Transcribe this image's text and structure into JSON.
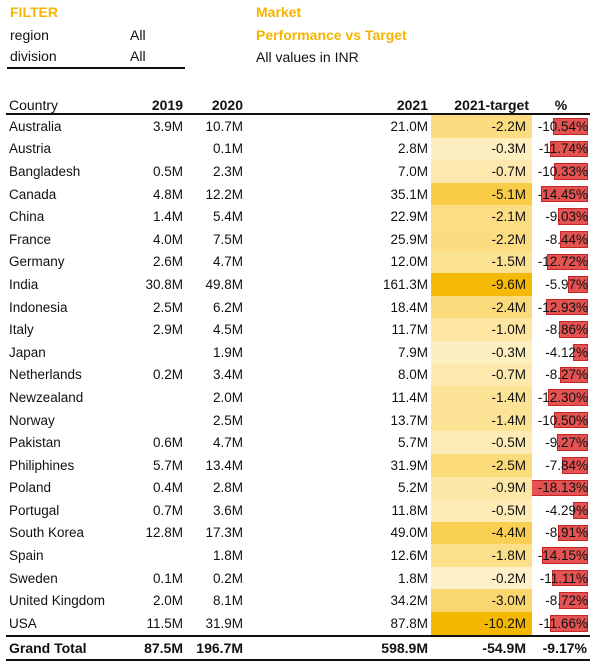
{
  "filter": {
    "title": "FILTER",
    "region_label": "region",
    "region_value": "All",
    "division_label": "division",
    "division_value": "All"
  },
  "report": {
    "title_line1": "Market",
    "title_line2": "Performance vs Target",
    "subtitle": "All values in INR"
  },
  "colors": {
    "accent": "#F4B400",
    "heat_low": "#FFF8E1",
    "heat_high": "#F5B800",
    "bar": "#E03535"
  },
  "columns": [
    "Country",
    "2019",
    "2020",
    "2021",
    "2021-target",
    "%"
  ],
  "rows": [
    {
      "country": "Australia",
      "y2019": "3.9M",
      "y2020": "10.7M",
      "y2021": "21.0M",
      "target": "-2.2M",
      "t": -2.2,
      "pct": "-10.54%",
      "p": 10.54
    },
    {
      "country": "Austria",
      "y2019": "",
      "y2020": "0.1M",
      "y2021": "2.8M",
      "target": "-0.3M",
      "t": -0.3,
      "pct": "-11.74%",
      "p": 11.74
    },
    {
      "country": "Bangladesh",
      "y2019": "0.5M",
      "y2020": "2.3M",
      "y2021": "7.0M",
      "target": "-0.7M",
      "t": -0.7,
      "pct": "-10.33%",
      "p": 10.33
    },
    {
      "country": "Canada",
      "y2019": "4.8M",
      "y2020": "12.2M",
      "y2021": "35.1M",
      "target": "-5.1M",
      "t": -5.1,
      "pct": "-14.45%",
      "p": 14.45
    },
    {
      "country": "China",
      "y2019": "1.4M",
      "y2020": "5.4M",
      "y2021": "22.9M",
      "target": "-2.1M",
      "t": -2.1,
      "pct": "-9.03%",
      "p": 9.03
    },
    {
      "country": "France",
      "y2019": "4.0M",
      "y2020": "7.5M",
      "y2021": "25.9M",
      "target": "-2.2M",
      "t": -2.2,
      "pct": "-8.44%",
      "p": 8.44
    },
    {
      "country": "Germany",
      "y2019": "2.6M",
      "y2020": "4.7M",
      "y2021": "12.0M",
      "target": "-1.5M",
      "t": -1.5,
      "pct": "-12.72%",
      "p": 12.72
    },
    {
      "country": "India",
      "y2019": "30.8M",
      "y2020": "49.8M",
      "y2021": "161.3M",
      "target": "-9.6M",
      "t": -9.6,
      "pct": "-5.97%",
      "p": 5.97
    },
    {
      "country": "Indonesia",
      "y2019": "2.5M",
      "y2020": "6.2M",
      "y2021": "18.4M",
      "target": "-2.4M",
      "t": -2.4,
      "pct": "-12.93%",
      "p": 12.93
    },
    {
      "country": "Italy",
      "y2019": "2.9M",
      "y2020": "4.5M",
      "y2021": "11.7M",
      "target": "-1.0M",
      "t": -1.0,
      "pct": "-8.86%",
      "p": 8.86
    },
    {
      "country": "Japan",
      "y2019": "",
      "y2020": "1.9M",
      "y2021": "7.9M",
      "target": "-0.3M",
      "t": -0.3,
      "pct": "-4.12%",
      "p": 4.12
    },
    {
      "country": "Netherlands",
      "y2019": "0.2M",
      "y2020": "3.4M",
      "y2021": "8.0M",
      "target": "-0.7M",
      "t": -0.7,
      "pct": "-8.27%",
      "p": 8.27
    },
    {
      "country": "Newzealand",
      "y2019": "",
      "y2020": "2.0M",
      "y2021": "11.4M",
      "target": "-1.4M",
      "t": -1.4,
      "pct": "-12.30%",
      "p": 12.3
    },
    {
      "country": "Norway",
      "y2019": "",
      "y2020": "2.5M",
      "y2021": "13.7M",
      "target": "-1.4M",
      "t": -1.4,
      "pct": "-10.50%",
      "p": 10.5
    },
    {
      "country": "Pakistan",
      "y2019": "0.6M",
      "y2020": "4.7M",
      "y2021": "5.7M",
      "target": "-0.5M",
      "t": -0.5,
      "pct": "-9.27%",
      "p": 9.27
    },
    {
      "country": "Philiphines",
      "y2019": "5.7M",
      "y2020": "13.4M",
      "y2021": "31.9M",
      "target": "-2.5M",
      "t": -2.5,
      "pct": "-7.84%",
      "p": 7.84
    },
    {
      "country": "Poland",
      "y2019": "0.4M",
      "y2020": "2.8M",
      "y2021": "5.2M",
      "target": "-0.9M",
      "t": -0.9,
      "pct": "-18.13%",
      "p": 18.13
    },
    {
      "country": "Portugal",
      "y2019": "0.7M",
      "y2020": "3.6M",
      "y2021": "11.8M",
      "target": "-0.5M",
      "t": -0.5,
      "pct": "-4.29%",
      "p": 4.29
    },
    {
      "country": "South Korea",
      "y2019": "12.8M",
      "y2020": "17.3M",
      "y2021": "49.0M",
      "target": "-4.4M",
      "t": -4.4,
      "pct": "-8.91%",
      "p": 8.91
    },
    {
      "country": "Spain",
      "y2019": "",
      "y2020": "1.8M",
      "y2021": "12.6M",
      "target": "-1.8M",
      "t": -1.8,
      "pct": "-14.15%",
      "p": 14.15
    },
    {
      "country": "Sweden",
      "y2019": "0.1M",
      "y2020": "0.2M",
      "y2021": "1.8M",
      "target": "-0.2M",
      "t": -0.2,
      "pct": "-11.11%",
      "p": 11.11
    },
    {
      "country": "United Kingdom",
      "y2019": "2.0M",
      "y2020": "8.1M",
      "y2021": "34.2M",
      "target": "-3.0M",
      "t": -3.0,
      "pct": "-8.72%",
      "p": 8.72
    },
    {
      "country": "USA",
      "y2019": "11.5M",
      "y2020": "31.9M",
      "y2021": "87.8M",
      "target": "-10.2M",
      "t": -10.2,
      "pct": "-11.66%",
      "p": 11.66
    }
  ],
  "total": {
    "label": "Grand Total",
    "y2019": "87.5M",
    "y2020": "196.7M",
    "y2021": "598.9M",
    "target": "-54.9M",
    "pct": "-9.17%"
  }
}
